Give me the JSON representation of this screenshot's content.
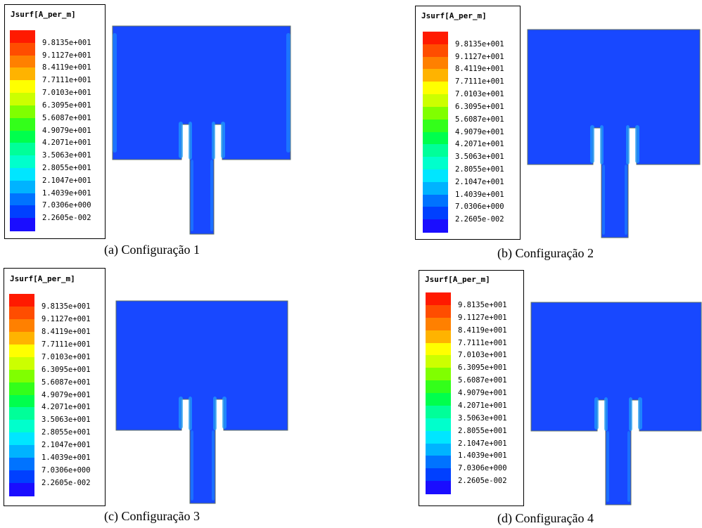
{
  "legend": {
    "title": "Jsurf[A_per_m]",
    "labels": [
      "9.8135e+001",
      "9.1127e+001",
      "8.4119e+001",
      "7.7111e+001",
      "7.0103e+001",
      "6.3095e+001",
      "5.6087e+001",
      "4.9079e+001",
      "4.2071e+001",
      "3.5063e+001",
      "2.8055e+001",
      "2.1047e+001",
      "1.4039e+001",
      "7.0306e+000",
      "2.2605e-002"
    ],
    "colors": [
      "#ff1a00",
      "#ff4d00",
      "#ff8000",
      "#ffb300",
      "#ffff00",
      "#ccff00",
      "#80ff00",
      "#33ff1a",
      "#00ff4d",
      "#00ff99",
      "#00ffcc",
      "#00e6ff",
      "#00b3ff",
      "#0073ff",
      "#0040ff",
      "#1a0dff"
    ]
  },
  "panels": [
    {
      "caption": "(a) Configuração 1"
    },
    {
      "caption": "(b) Configuração 2"
    },
    {
      "caption": "(c) Configuração 3"
    },
    {
      "caption": "(d) Configuração 4"
    }
  ]
}
